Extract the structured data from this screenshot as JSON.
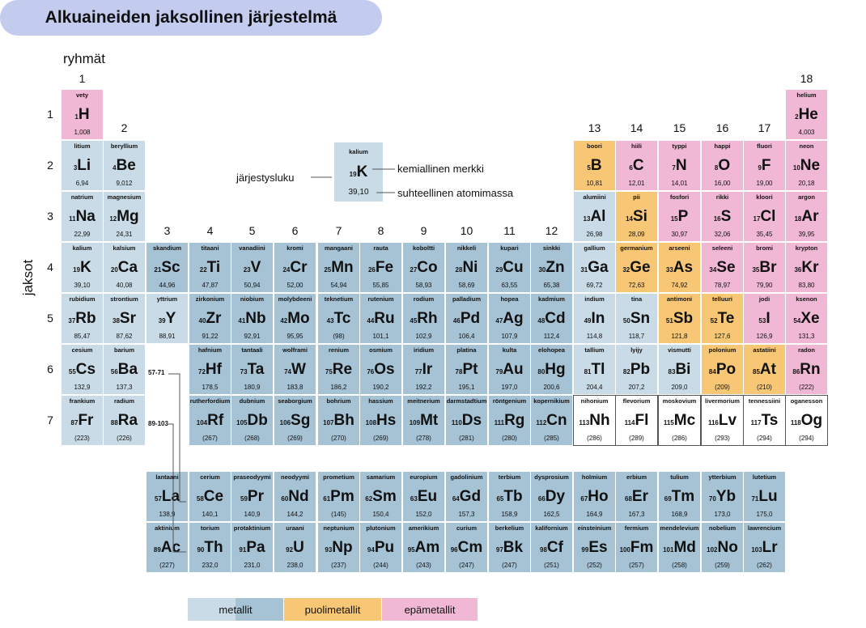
{
  "title": "Alkuaineiden jaksollinen järjestelmä",
  "groups_label": "ryhmät",
  "periods_label": "jaksot",
  "groups": [
    "1",
    "2",
    "3",
    "4",
    "5",
    "6",
    "7",
    "8",
    "9",
    "10",
    "11",
    "12",
    "13",
    "14",
    "15",
    "16",
    "17",
    "18"
  ],
  "periods": [
    "1",
    "2",
    "3",
    "4",
    "5",
    "6",
    "7"
  ],
  "lanthanide_ref": "57-71",
  "actinide_ref": "89-103",
  "key": {
    "name": "kalium",
    "symbol": "K",
    "number": "19",
    "mass": "39,10",
    "number_label": "järjestysluku",
    "symbol_label": "kemiallinen merkki",
    "mass_label": "suhteellinen atomimassa"
  },
  "legend": {
    "metals": "metallit",
    "metalloids": "puolimetallit",
    "nonmetals": "epämetallit"
  },
  "colors": {
    "metal_light": "#c9dbe6",
    "metal": "#a6c3d6",
    "metalloid": "#f8c776",
    "nonmetal": "#f0b8d4",
    "title_bg": "#c3cbef"
  },
  "elements": [
    {
      "z": "1",
      "s": "H",
      "n": "vety",
      "m": "1,008"
    },
    {
      "z": "2",
      "s": "He",
      "n": "helium",
      "m": "4,003"
    },
    {
      "z": "3",
      "s": "Li",
      "n": "litium",
      "m": "6,94"
    },
    {
      "z": "4",
      "s": "Be",
      "n": "beryllium",
      "m": "9,012"
    },
    {
      "z": "5",
      "s": "B",
      "n": "boori",
      "m": "10,81"
    },
    {
      "z": "6",
      "s": "C",
      "n": "hiili",
      "m": "12,01"
    },
    {
      "z": "7",
      "s": "N",
      "n": "typpi",
      "m": "14,01"
    },
    {
      "z": "8",
      "s": "O",
      "n": "happi",
      "m": "16,00"
    },
    {
      "z": "9",
      "s": "F",
      "n": "fluori",
      "m": "19,00"
    },
    {
      "z": "10",
      "s": "Ne",
      "n": "neon",
      "m": "20,18"
    },
    {
      "z": "11",
      "s": "Na",
      "n": "natrium",
      "m": "22,99"
    },
    {
      "z": "12",
      "s": "Mg",
      "n": "magnesium",
      "m": "24,31"
    },
    {
      "z": "13",
      "s": "Al",
      "n": "alumiini",
      "m": "26,98"
    },
    {
      "z": "14",
      "s": "Si",
      "n": "pii",
      "m": "28,09"
    },
    {
      "z": "15",
      "s": "P",
      "n": "fosfori",
      "m": "30,97"
    },
    {
      "z": "16",
      "s": "S",
      "n": "rikki",
      "m": "32,06"
    },
    {
      "z": "17",
      "s": "Cl",
      "n": "kloori",
      "m": "35,45"
    },
    {
      "z": "18",
      "s": "Ar",
      "n": "argon",
      "m": "39,95"
    },
    {
      "z": "19",
      "s": "K",
      "n": "kalium",
      "m": "39,10"
    },
    {
      "z": "20",
      "s": "Ca",
      "n": "kalsium",
      "m": "40,08"
    },
    {
      "z": "21",
      "s": "Sc",
      "n": "skandium",
      "m": "44,96"
    },
    {
      "z": "22",
      "s": "Ti",
      "n": "titaani",
      "m": "47,87"
    },
    {
      "z": "23",
      "s": "V",
      "n": "vanadiini",
      "m": "50,94"
    },
    {
      "z": "24",
      "s": "Cr",
      "n": "kromi",
      "m": "52,00"
    },
    {
      "z": "25",
      "s": "Mn",
      "n": "mangaani",
      "m": "54,94"
    },
    {
      "z": "26",
      "s": "Fe",
      "n": "rauta",
      "m": "55,85"
    },
    {
      "z": "27",
      "s": "Co",
      "n": "koboltti",
      "m": "58,93"
    },
    {
      "z": "28",
      "s": "Ni",
      "n": "nikkeli",
      "m": "58,69"
    },
    {
      "z": "29",
      "s": "Cu",
      "n": "kupari",
      "m": "63,55"
    },
    {
      "z": "30",
      "s": "Zn",
      "n": "sinkki",
      "m": "65,38"
    },
    {
      "z": "31",
      "s": "Ga",
      "n": "gallium",
      "m": "69,72"
    },
    {
      "z": "32",
      "s": "Ge",
      "n": "germanium",
      "m": "72,63"
    },
    {
      "z": "33",
      "s": "As",
      "n": "arseeni",
      "m": "74,92"
    },
    {
      "z": "34",
      "s": "Se",
      "n": "seleeni",
      "m": "78,97"
    },
    {
      "z": "35",
      "s": "Br",
      "n": "bromi",
      "m": "79,90"
    },
    {
      "z": "36",
      "s": "Kr",
      "n": "krypton",
      "m": "83,80"
    },
    {
      "z": "37",
      "s": "Rb",
      "n": "rubidium",
      "m": "85,47"
    },
    {
      "z": "38",
      "s": "Sr",
      "n": "strontium",
      "m": "87,62"
    },
    {
      "z": "39",
      "s": "Y",
      "n": "yttrium",
      "m": "88,91"
    },
    {
      "z": "40",
      "s": "Zr",
      "n": "zirkonium",
      "m": "91,22"
    },
    {
      "z": "41",
      "s": "Nb",
      "n": "niobium",
      "m": "92,91"
    },
    {
      "z": "42",
      "s": "Mo",
      "n": "molybdeeni",
      "m": "95,95"
    },
    {
      "z": "43",
      "s": "Tc",
      "n": "teknetium",
      "m": "(98)"
    },
    {
      "z": "44",
      "s": "Ru",
      "n": "rutenium",
      "m": "101,1"
    },
    {
      "z": "45",
      "s": "Rh",
      "n": "rodium",
      "m": "102,9"
    },
    {
      "z": "46",
      "s": "Pd",
      "n": "palladium",
      "m": "106,4"
    },
    {
      "z": "47",
      "s": "Ag",
      "n": "hopea",
      "m": "107,9"
    },
    {
      "z": "48",
      "s": "Cd",
      "n": "kadmium",
      "m": "112,4"
    },
    {
      "z": "49",
      "s": "In",
      "n": "indium",
      "m": "114,8"
    },
    {
      "z": "50",
      "s": "Sn",
      "n": "tina",
      "m": "118,7"
    },
    {
      "z": "51",
      "s": "Sb",
      "n": "antimoni",
      "m": "121,8"
    },
    {
      "z": "52",
      "s": "Te",
      "n": "telluuri",
      "m": "127,6"
    },
    {
      "z": "53",
      "s": "I",
      "n": "jodi",
      "m": "126,9"
    },
    {
      "z": "54",
      "s": "Xe",
      "n": "ksenon",
      "m": "131,3"
    },
    {
      "z": "55",
      "s": "Cs",
      "n": "cesium",
      "m": "132,9"
    },
    {
      "z": "56",
      "s": "Ba",
      "n": "barium",
      "m": "137,3"
    },
    {
      "z": "72",
      "s": "Hf",
      "n": "hafnium",
      "m": "178,5"
    },
    {
      "z": "73",
      "s": "Ta",
      "n": "tantaali",
      "m": "180,9"
    },
    {
      "z": "74",
      "s": "W",
      "n": "wolframi",
      "m": "183,8"
    },
    {
      "z": "75",
      "s": "Re",
      "n": "renium",
      "m": "186,2"
    },
    {
      "z": "76",
      "s": "Os",
      "n": "osmium",
      "m": "190,2"
    },
    {
      "z": "77",
      "s": "Ir",
      "n": "iridium",
      "m": "192,2"
    },
    {
      "z": "78",
      "s": "Pt",
      "n": "platina",
      "m": "195,1"
    },
    {
      "z": "79",
      "s": "Au",
      "n": "kulta",
      "m": "197,0"
    },
    {
      "z": "80",
      "s": "Hg",
      "n": "elohopea",
      "m": "200,6"
    },
    {
      "z": "81",
      "s": "Tl",
      "n": "tallium",
      "m": "204,4"
    },
    {
      "z": "82",
      "s": "Pb",
      "n": "lyijy",
      "m": "207,2"
    },
    {
      "z": "83",
      "s": "Bi",
      "n": "vismutti",
      "m": "209,0"
    },
    {
      "z": "84",
      "s": "Po",
      "n": "polonium",
      "m": "(209)"
    },
    {
      "z": "85",
      "s": "At",
      "n": "astatiini",
      "m": "(210)"
    },
    {
      "z": "86",
      "s": "Rn",
      "n": "radon",
      "m": "(222)"
    },
    {
      "z": "87",
      "s": "Fr",
      "n": "frankium",
      "m": "(223)"
    },
    {
      "z": "88",
      "s": "Ra",
      "n": "radium",
      "m": "(226)"
    },
    {
      "z": "104",
      "s": "Rf",
      "n": "rutherfordium",
      "m": "(267)"
    },
    {
      "z": "105",
      "s": "Db",
      "n": "dubnium",
      "m": "(268)"
    },
    {
      "z": "106",
      "s": "Sg",
      "n": "seaborgium",
      "m": "(269)"
    },
    {
      "z": "107",
      "s": "Bh",
      "n": "bohrium",
      "m": "(270)"
    },
    {
      "z": "108",
      "s": "Hs",
      "n": "hassium",
      "m": "(269)"
    },
    {
      "z": "109",
      "s": "Mt",
      "n": "meitnerium",
      "m": "(278)"
    },
    {
      "z": "110",
      "s": "Ds",
      "n": "darmstadtium",
      "m": "(281)"
    },
    {
      "z": "111",
      "s": "Rg",
      "n": "röntgenium",
      "m": "(280)"
    },
    {
      "z": "112",
      "s": "Cn",
      "n": "kopernikium",
      "m": "(285)"
    },
    {
      "z": "113",
      "s": "Nh",
      "n": "nihonium",
      "m": "(286)"
    },
    {
      "z": "114",
      "s": "Fl",
      "n": "flevorium",
      "m": "(289)"
    },
    {
      "z": "115",
      "s": "Mc",
      "n": "moskovium",
      "m": "(286)"
    },
    {
      "z": "116",
      "s": "Lv",
      "n": "livermorium",
      "m": "(293)"
    },
    {
      "z": "117",
      "s": "Ts",
      "n": "tennessiini",
      "m": "(294)"
    },
    {
      "z": "118",
      "s": "Og",
      "n": "oganesson",
      "m": "(294)"
    },
    {
      "z": "57",
      "s": "La",
      "n": "lantaani",
      "m": "138,9"
    },
    {
      "z": "58",
      "s": "Ce",
      "n": "cerium",
      "m": "140,1"
    },
    {
      "z": "59",
      "s": "Pr",
      "n": "praseodyymi",
      "m": "140,9"
    },
    {
      "z": "60",
      "s": "Nd",
      "n": "neodyymi",
      "m": "144,2"
    },
    {
      "z": "61",
      "s": "Pm",
      "n": "prometium",
      "m": "(145)"
    },
    {
      "z": "62",
      "s": "Sm",
      "n": "samarium",
      "m": "150,4"
    },
    {
      "z": "63",
      "s": "Eu",
      "n": "europium",
      "m": "152,0"
    },
    {
      "z": "64",
      "s": "Gd",
      "n": "gadolinium",
      "m": "157,3"
    },
    {
      "z": "65",
      "s": "Tb",
      "n": "terbium",
      "m": "158,9"
    },
    {
      "z": "66",
      "s": "Dy",
      "n": "dysprosium",
      "m": "162,5"
    },
    {
      "z": "67",
      "s": "Ho",
      "n": "holmium",
      "m": "164,9"
    },
    {
      "z": "68",
      "s": "Er",
      "n": "erbium",
      "m": "167,3"
    },
    {
      "z": "69",
      "s": "Tm",
      "n": "tulium",
      "m": "168,9"
    },
    {
      "z": "70",
      "s": "Yb",
      "n": "ytterbium",
      "m": "173,0"
    },
    {
      "z": "71",
      "s": "Lu",
      "n": "lutetium",
      "m": "175,0"
    },
    {
      "z": "89",
      "s": "Ac",
      "n": "aktinium",
      "m": "(227)"
    },
    {
      "z": "90",
      "s": "Th",
      "n": "torium",
      "m": "232,0"
    },
    {
      "z": "91",
      "s": "Pa",
      "n": "protaktinium",
      "m": "231,0"
    },
    {
      "z": "92",
      "s": "U",
      "n": "uraani",
      "m": "238,0"
    },
    {
      "z": "93",
      "s": "Np",
      "n": "neptunium",
      "m": "(237)"
    },
    {
      "z": "94",
      "s": "Pu",
      "n": "plutonium",
      "m": "(244)"
    },
    {
      "z": "95",
      "s": "Am",
      "n": "amerikium",
      "m": "(243)"
    },
    {
      "z": "96",
      "s": "Cm",
      "n": "curium",
      "m": "(247)"
    },
    {
      "z": "97",
      "s": "Bk",
      "n": "berkelium",
      "m": "(247)"
    },
    {
      "z": "98",
      "s": "Cf",
      "n": "kalifornium",
      "m": "(251)"
    },
    {
      "z": "99",
      "s": "Es",
      "n": "einsteinium",
      "m": "(252)"
    },
    {
      "z": "100",
      "s": "Fm",
      "n": "fermium",
      "m": "(257)"
    },
    {
      "z": "101",
      "s": "Md",
      "n": "mendelevium",
      "m": "(258)"
    },
    {
      "z": "102",
      "s": "No",
      "n": "nobelium",
      "m": "(259)"
    },
    {
      "z": "103",
      "s": "Lr",
      "n": "lawrencium",
      "m": "(262)"
    }
  ]
}
